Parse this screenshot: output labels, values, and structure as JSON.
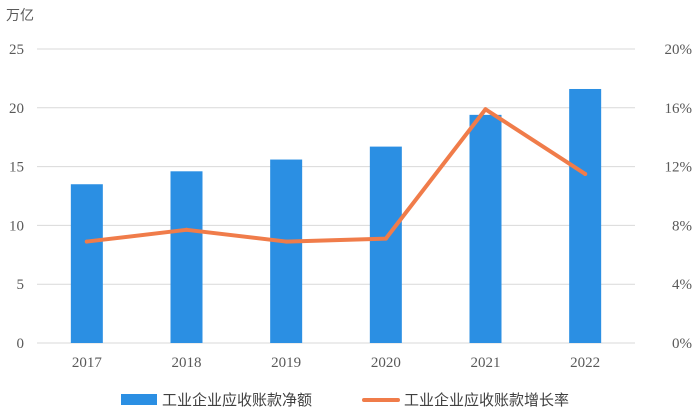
{
  "chart_data": {
    "type": "bar",
    "unit_label": "万亿",
    "categories": [
      "2017",
      "2018",
      "2019",
      "2020",
      "2021",
      "2022"
    ],
    "series": [
      {
        "name": "工业企业应收账款净额",
        "type": "bar",
        "axis": "left",
        "color": "#2B8FE3",
        "values": [
          13.5,
          14.6,
          15.6,
          16.7,
          19.4,
          21.6
        ]
      },
      {
        "name": "工业企业应收账款增长率",
        "type": "line",
        "axis": "right",
        "color": "#F07C4A",
        "values": [
          0.069,
          0.077,
          0.069,
          0.071,
          0.159,
          0.115
        ]
      }
    ],
    "y_left": {
      "min": 0,
      "max": 25,
      "ticks": [
        "0",
        "5",
        "10",
        "15",
        "20",
        "25"
      ]
    },
    "y_right": {
      "min": 0,
      "max": 0.2,
      "ticks": [
        "0%",
        "4%",
        "8%",
        "12%",
        "16%",
        "20%"
      ]
    },
    "grid": true,
    "legend_position": "bottom"
  }
}
